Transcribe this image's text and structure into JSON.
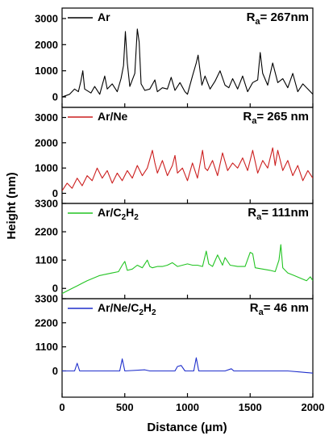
{
  "chart_data": {
    "type": "line",
    "xlabel": "Distance (μm)",
    "ylabel": "Height (nm)",
    "xlim": [
      0,
      2000
    ],
    "xticks": [
      0,
      500,
      1000,
      1500,
      2000
    ],
    "grid": false,
    "legend_placement": "top-left",
    "panels": [
      {
        "id": "ar",
        "series_name": "Ar",
        "name_parts": [
          {
            "t": "Ar",
            "sub": false
          }
        ],
        "ra_label": "R",
        "ra_sub": "a",
        "ra_value": "= 267nm",
        "color": "#000000",
        "ylim": [
          -400,
          3400
        ],
        "yticks": [
          0,
          1000,
          2000,
          3000
        ],
        "x": [
          0,
          60,
          100,
          130,
          150,
          165,
          180,
          230,
          260,
          300,
          340,
          360,
          400,
          440,
          470,
          490,
          505,
          520,
          540,
          580,
          600,
          615,
          630,
          660,
          700,
          740,
          760,
          800,
          840,
          870,
          900,
          940,
          980,
          1000,
          1040,
          1070,
          1085,
          1100,
          1115,
          1140,
          1180,
          1220,
          1260,
          1300,
          1330,
          1360,
          1400,
          1440,
          1480,
          1520,
          1560,
          1580,
          1600,
          1640,
          1680,
          1720,
          1760,
          1800,
          1840,
          1880,
          1920,
          1960,
          2000
        ],
        "y": [
          0,
          100,
          300,
          200,
          600,
          1000,
          300,
          150,
          400,
          100,
          800,
          300,
          500,
          200,
          700,
          1200,
          2500,
          1300,
          400,
          900,
          2600,
          2100,
          500,
          250,
          300,
          650,
          200,
          350,
          300,
          750,
          250,
          550,
          200,
          100,
          800,
          1300,
          1600,
          1000,
          450,
          800,
          300,
          600,
          1000,
          450,
          350,
          700,
          300,
          800,
          200,
          550,
          650,
          1700,
          900,
          450,
          1300,
          550,
          700,
          350,
          900,
          200,
          500,
          300,
          100
        ]
      },
      {
        "id": "arne",
        "series_name": "Ar/Ne",
        "name_parts": [
          {
            "t": "Ar/Ne",
            "sub": false
          }
        ],
        "ra_label": "R",
        "ra_sub": "a",
        "ra_value": "= 265 nm",
        "color": "#cc1f1f",
        "ylim": [
          -400,
          3400
        ],
        "yticks": [
          0,
          1000,
          2000,
          3000
        ],
        "x": [
          0,
          40,
          80,
          120,
          160,
          200,
          240,
          280,
          320,
          360,
          400,
          440,
          480,
          520,
          560,
          600,
          640,
          680,
          720,
          740,
          760,
          800,
          840,
          880,
          900,
          920,
          960,
          1000,
          1040,
          1080,
          1120,
          1140,
          1160,
          1200,
          1240,
          1280,
          1320,
          1360,
          1400,
          1440,
          1480,
          1520,
          1560,
          1600,
          1640,
          1680,
          1700,
          1720,
          1760,
          1800,
          1840,
          1880,
          1920,
          1960,
          2000
        ],
        "y": [
          100,
          400,
          200,
          600,
          300,
          700,
          500,
          1000,
          600,
          900,
          400,
          800,
          500,
          900,
          600,
          1100,
          700,
          1000,
          1700,
          1200,
          800,
          1300,
          700,
          1100,
          1500,
          800,
          1000,
          500,
          1200,
          600,
          1700,
          1000,
          900,
          1300,
          700,
          1600,
          900,
          1200,
          1000,
          1400,
          900,
          1700,
          800,
          1300,
          1000,
          1800,
          1100,
          1700,
          900,
          1300,
          700,
          1100,
          500,
          900,
          600
        ]
      },
      {
        "id": "arc2h2",
        "series_name": "Ar/C2H2",
        "name_parts": [
          {
            "t": "Ar/C",
            "sub": false
          },
          {
            "t": "2",
            "sub": true
          },
          {
            "t": "H",
            "sub": false
          },
          {
            "t": "2",
            "sub": true
          }
        ],
        "ra_label": "R",
        "ra_sub": "a",
        "ra_value": "= 111nm",
        "color": "#22c422",
        "ylim": [
          -400,
          3300
        ],
        "yticks": [
          0,
          1100,
          2200,
          3300
        ],
        "x": [
          0,
          40,
          80,
          120,
          160,
          200,
          250,
          300,
          350,
          400,
          450,
          480,
          500,
          520,
          560,
          600,
          640,
          680,
          700,
          720,
          760,
          800,
          840,
          880,
          920,
          960,
          1000,
          1040,
          1080,
          1120,
          1150,
          1170,
          1200,
          1240,
          1280,
          1300,
          1340,
          1400,
          1460,
          1500,
          1520,
          1540,
          1600,
          1660,
          1700,
          1730,
          1745,
          1760,
          1800,
          1850,
          1900,
          1950,
          1980,
          2000
        ],
        "y": [
          -200,
          -100,
          0,
          100,
          200,
          300,
          400,
          500,
          550,
          600,
          650,
          900,
          1050,
          700,
          750,
          900,
          800,
          1100,
          850,
          800,
          850,
          850,
          900,
          1000,
          850,
          900,
          950,
          900,
          900,
          850,
          1450,
          950,
          850,
          1300,
          900,
          1200,
          900,
          850,
          850,
          1400,
          1350,
          800,
          750,
          700,
          650,
          1100,
          1700,
          800,
          600,
          500,
          400,
          300,
          450,
          300
        ]
      },
      {
        "id": "arnec2h2",
        "series_name": "Ar/Ne/C2H2",
        "name_parts": [
          {
            "t": "Ar/Ne/C",
            "sub": false
          },
          {
            "t": "2",
            "sub": true
          },
          {
            "t": "H",
            "sub": false
          },
          {
            "t": "2",
            "sub": true
          }
        ],
        "ra_label": "R",
        "ra_sub": "a",
        "ra_value": "= 46 nm",
        "color": "#1f2fcc",
        "ylim": [
          -1200,
          3300
        ],
        "yticks": [
          0,
          1100,
          2200,
          3300
        ],
        "x": [
          0,
          100,
          120,
          140,
          300,
          460,
          480,
          500,
          660,
          700,
          900,
          920,
          950,
          980,
          1050,
          1070,
          1090,
          1300,
          1350,
          1370,
          1600,
          1800,
          1900,
          2000
        ],
        "y": [
          0,
          0,
          350,
          0,
          0,
          0,
          550,
          0,
          50,
          0,
          0,
          200,
          250,
          0,
          0,
          600,
          0,
          0,
          100,
          0,
          0,
          0,
          -50,
          -100
        ]
      }
    ]
  }
}
